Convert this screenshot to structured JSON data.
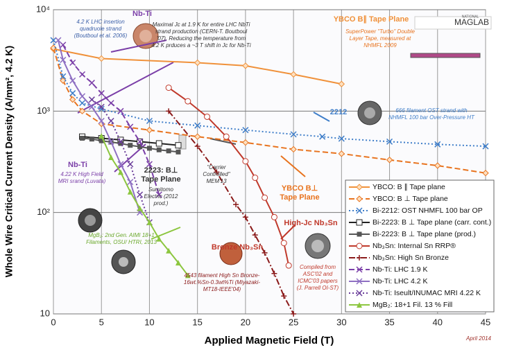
{
  "chart_data": {
    "type": "line",
    "x_label": "Applied Magnetic Field (T)",
    "y_label": "Whole Wire Critical Current Density (A/mm², 4.2 K)",
    "xlim": [
      0,
      45
    ],
    "xticks": [
      0,
      5,
      10,
      15,
      20,
      25,
      30,
      35,
      40,
      45
    ],
    "ylim": [
      10,
      10000
    ],
    "y_scale": "log",
    "yticks": [
      10,
      {
        "value": 100,
        "label": "10²"
      },
      {
        "value": 1000,
        "label": "10³"
      },
      {
        "value": 10000,
        "label": "10⁴"
      }
    ],
    "grid": true,
    "legend_position": "lower right",
    "series": [
      {
        "name": "YBCO: B ∥ Tape plane",
        "color": "#f0913a",
        "dash": "solid",
        "marker": "diamond",
        "x": [
          0,
          5,
          15,
          20,
          25,
          30
        ],
        "values": [
          4100,
          3300,
          3000,
          2800,
          2300,
          1850
        ]
      },
      {
        "name": "YBCO: B ⊥ Tape plane",
        "color": "#e8731e",
        "dash": "dash",
        "marker": "diamond",
        "x": [
          0,
          1,
          2,
          3,
          5,
          10,
          15,
          20,
          25,
          30,
          35,
          40,
          45
        ],
        "values": [
          4200,
          2000,
          1300,
          1000,
          750,
          650,
          560,
          490,
          420,
          380,
          330,
          290,
          245
        ]
      },
      {
        "name": "Bi-2212: OST NHMFL 100 bar OP",
        "color": "#3f7ec9",
        "dash": "dot",
        "marker": "x",
        "x": [
          0,
          1,
          2,
          3,
          5,
          10,
          15,
          20,
          25,
          28,
          30,
          35,
          40,
          45
        ],
        "values": [
          5000,
          2200,
          1500,
          1200,
          1050,
          800,
          720,
          650,
          590,
          560,
          535,
          500,
          470,
          450
        ]
      },
      {
        "name": "Bi-2223: B ⊥ Tape plane (carr. cont.)",
        "color": "#222222",
        "dash": "solid",
        "marker": "square-open",
        "x": [
          3,
          5,
          7,
          9,
          11,
          13
        ],
        "values": [
          560,
          540,
          520,
          500,
          480,
          460
        ]
      },
      {
        "name": "Bi-2223: B ⊥ Tape plane (prod.)",
        "color": "#555555",
        "dash": "solid",
        "marker": "square",
        "x": [
          3,
          4,
          5,
          6,
          7,
          8,
          9,
          10,
          11,
          12,
          13
        ],
        "values": [
          540,
          530,
          510,
          495,
          480,
          460,
          445,
          430,
          415,
          405,
          395
        ]
      },
      {
        "name": "Nb₃Sn: Internal Sn RRP®",
        "color": "#c0392b",
        "dash": "solid",
        "marker": "circle-open",
        "x": [
          12,
          14,
          16,
          18,
          20,
          21,
          22,
          23,
          24,
          24.5
        ],
        "values": [
          1700,
          1250,
          880,
          560,
          320,
          220,
          140,
          90,
          50,
          30
        ]
      },
      {
        "name": "Nb₃Sn: High Sn Bronze",
        "color": "#8b1a1a",
        "dash": "dashdot",
        "marker": "plus",
        "x": [
          12,
          15,
          17,
          19,
          20,
          21,
          22,
          23,
          24,
          25
        ],
        "values": [
          1000,
          450,
          250,
          120,
          90,
          60,
          40,
          25,
          15,
          10
        ]
      },
      {
        "name": "Nb-Ti: LHC 1.9 K",
        "color": "#7b3fa8",
        "dash": "dash",
        "marker": "x",
        "x": [
          1,
          2,
          3,
          4,
          5,
          6,
          7,
          8,
          9,
          10,
          11
        ],
        "values": [
          4500,
          3000,
          2300,
          1900,
          1500,
          1200,
          1000,
          700,
          500,
          300,
          150
        ]
      },
      {
        "name": "Nb-Ti: LHC 4.2 K",
        "color": "#8e6fc2",
        "dash": "solid",
        "marker": "x",
        "x": [
          0.5,
          1,
          2,
          3,
          4,
          5,
          6,
          7,
          8,
          9
        ],
        "values": [
          5000,
          3200,
          2000,
          1400,
          1100,
          800,
          500,
          300,
          200,
          100
        ]
      },
      {
        "name": "Nb-Ti: Iseult/INUMAC MRI 4.22 K",
        "color": "#6a3d9a",
        "dash": "dot",
        "marker": "x",
        "x": [
          4,
          5,
          6,
          7,
          8,
          9,
          10
        ],
        "values": [
          1300,
          1100,
          800,
          500,
          300,
          150,
          80
        ]
      },
      {
        "name": "MgB₂: 18+1 Fil. 13 % Fill",
        "color": "#8cc63f",
        "dash": "solid",
        "marker": "triangle",
        "x": [
          5,
          6,
          7,
          8,
          9,
          10,
          11,
          12,
          13,
          14
        ],
        "values": [
          570,
          350,
          250,
          160,
          110,
          80,
          55,
          42,
          32,
          24
        ]
      }
    ],
    "annotations": [
      {
        "text": [
          "4.2 K LHC insertion",
          "quadruole strand",
          "(Boutboul et al. 2006)"
        ],
        "color": "#3a5fa8"
      },
      {
        "text": [
          "Nb-Ti"
        ],
        "color": "#7b3fa8"
      },
      {
        "text": [
          "Maximal Jc at 1.9 K for entire LHC NbTi",
          "strand production (CERN-T. Boutboul",
          "'07). Reducing the temperature from",
          "4.2 K prduces a ~3 T shift in Jc for Nb-Ti"
        ],
        "color": "#333333"
      },
      {
        "text": [
          "YBCO B∥ Tape Plane"
        ],
        "color": "#f0913a"
      },
      {
        "text": [
          "SuperPower \"Turbo\" Double",
          "Layer Tape, measured at",
          "NHMFL 2009"
        ],
        "color": "#e8731e"
      },
      {
        "text": [
          "2212"
        ],
        "color": "#3f7ec9"
      },
      {
        "text": [
          "666 filament OST strand with",
          "NHMFL 100 bar Over-Pressure HT"
        ],
        "color": "#3f7ec9"
      },
      {
        "text": [
          "Nb-Ti"
        ],
        "color": "#7b3fa8"
      },
      {
        "text": [
          "4.22 K High Field",
          "MRI srand (Luvata)"
        ],
        "color": "#7b3fa8"
      },
      {
        "text": [
          "2223: B⊥",
          "Tape Plane"
        ],
        "color": "#333333"
      },
      {
        "text": [
          "Sumitomo",
          "Electric (2012",
          "prod.)"
        ],
        "color": "#333333"
      },
      {
        "text": [
          "\"Carrier",
          "Controlled\"",
          "MEM'13"
        ],
        "color": "#333333"
      },
      {
        "text": [
          "YBCO B⊥",
          "Tape Plane"
        ],
        "color": "#e8731e"
      },
      {
        "text": [
          "High-Jc Nb₃Sn"
        ],
        "color": "#c0392b"
      },
      {
        "text": [
          "Bronze Nb₃Sn"
        ],
        "color": "#c0392b"
      },
      {
        "text": [
          "Compiled from",
          "ASC'02 and",
          "ICMC'03 papers",
          "(J. Parrell OI-ST)"
        ],
        "color": "#c0392b"
      },
      {
        "text": [
          "MgB₂: 2nd Gen. AIMI 18+1",
          "Filaments, OSU/ HTRI, 2013"
        ],
        "color": "#6aa82a"
      },
      {
        "text": [
          "4543 filament High Sn Bronze-",
          "16wt.%Sn-0.3wt%Ti (Miyazaki-",
          "MT18-IEEE'04)"
        ],
        "color": "#8b1a1a"
      },
      {
        "text": [
          "April 2014"
        ],
        "color": "#a0302a"
      }
    ],
    "logo": [
      "NATIONAL",
      "MAGLAB"
    ]
  }
}
